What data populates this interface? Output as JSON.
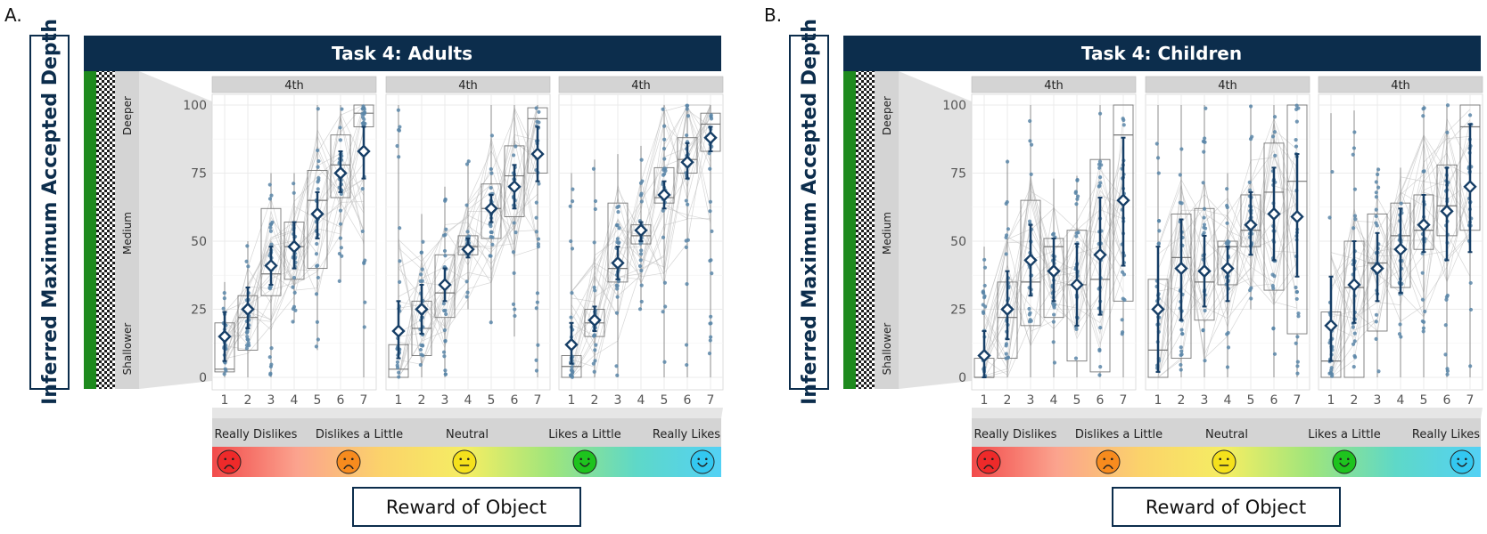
{
  "colors": {
    "header_bg": "#0c2d4c",
    "header_text": "#ffffff",
    "point": "#5b86a8",
    "mean": "#163e66",
    "strip": "#d4d4d4",
    "box": "#777777",
    "track_green": "#1e8a1e",
    "line": "#bbbbbb",
    "grid": "#ebebeb",
    "face_colors": [
      "#ee2a2a",
      "#f78b1e",
      "#f5e11c",
      "#1ec31e",
      "#33c8f0"
    ],
    "gradient_stops": [
      "#f24b4b",
      "#fba38e",
      "#fbd36a",
      "#f5ee63",
      "#9ee57c",
      "#5ed8c8",
      "#53d1f5"
    ]
  },
  "y_axis_label": "Inferred Maximum Accepted Depth",
  "y_depth_labels": [
    "Deeper",
    "Medium",
    "Shallower"
  ],
  "x_axis_label": "Reward of Object",
  "reward_levels": [
    "Really Dislikes",
    "Dislikes a Little",
    "Neutral",
    "Likes a Little",
    "Really Likes"
  ],
  "chart_data": [
    {
      "type": "box",
      "panel_label": "A.",
      "title": "Task 4: Adults",
      "ylim": [
        0,
        100
      ],
      "y_ticks": [
        0,
        25,
        50,
        75,
        100
      ],
      "x_ticks": [
        1,
        2,
        3,
        4,
        5,
        6,
        7
      ],
      "facets": [
        {
          "label": "4th",
          "series": [
            {
              "x": 1,
              "q1": 2,
              "median": 3,
              "q3": 20,
              "mean": 15,
              "ci": [
                6,
                24
              ],
              "low": 0,
              "high": 35
            },
            {
              "x": 2,
              "q1": 10,
              "median": 22,
              "q3": 30,
              "mean": 25,
              "ci": [
                18,
                33
              ],
              "low": 0,
              "high": 50
            },
            {
              "x": 3,
              "q1": 30,
              "median": 38,
              "q3": 62,
              "mean": 41,
              "ci": [
                34,
                48
              ],
              "low": 0,
              "high": 75
            },
            {
              "x": 4,
              "q1": 36,
              "median": 48,
              "q3": 57,
              "mean": 48,
              "ci": [
                40,
                57
              ],
              "low": 20,
              "high": 75
            },
            {
              "x": 5,
              "q1": 40,
              "median": 65,
              "q3": 76,
              "mean": 60,
              "ci": [
                51,
                68
              ],
              "low": 10,
              "high": 100
            },
            {
              "x": 6,
              "q1": 66,
              "median": 78,
              "q3": 89,
              "mean": 75,
              "ci": [
                68,
                83
              ],
              "low": 35,
              "high": 100
            },
            {
              "x": 7,
              "q1": 92,
              "median": 97,
              "q3": 100,
              "mean": 83,
              "ci": [
                73,
                92
              ],
              "low": 0,
              "high": 100
            }
          ]
        },
        {
          "label": "4th",
          "series": [
            {
              "x": 1,
              "q1": 0,
              "median": 3,
              "q3": 12,
              "mean": 17,
              "ci": [
                7,
                28
              ],
              "low": 0,
              "high": 100
            },
            {
              "x": 2,
              "q1": 8,
              "median": 18,
              "q3": 28,
              "mean": 25,
              "ci": [
                16,
                34
              ],
              "low": 0,
              "high": 60
            },
            {
              "x": 3,
              "q1": 22,
              "median": 31,
              "q3": 45,
              "mean": 34,
              "ci": [
                28,
                40
              ],
              "low": 0,
              "high": 70
            },
            {
              "x": 4,
              "q1": 45,
              "median": 48,
              "q3": 52,
              "mean": 47,
              "ci": [
                44,
                51
              ],
              "low": 25,
              "high": 80
            },
            {
              "x": 5,
              "q1": 51,
              "median": 62,
              "q3": 71,
              "mean": 62,
              "ci": [
                57,
                67
              ],
              "low": 20,
              "high": 100
            },
            {
              "x": 6,
              "q1": 59,
              "median": 74,
              "q3": 85,
              "mean": 70,
              "ci": [
                62,
                78
              ],
              "low": 15,
              "high": 100
            },
            {
              "x": 7,
              "q1": 75,
              "median": 95,
              "q3": 99,
              "mean": 82,
              "ci": [
                72,
                92
              ],
              "low": 0,
              "high": 100
            }
          ]
        },
        {
          "label": "4th",
          "series": [
            {
              "x": 1,
              "q1": 0,
              "median": 4,
              "q3": 8,
              "mean": 12,
              "ci": [
                5,
                20
              ],
              "low": 0,
              "high": 75
            },
            {
              "x": 2,
              "q1": 15,
              "median": 20,
              "q3": 25,
              "mean": 21,
              "ci": [
                17,
                26
              ],
              "low": 0,
              "high": 80
            },
            {
              "x": 3,
              "q1": 35,
              "median": 40,
              "q3": 64,
              "mean": 42,
              "ci": [
                36,
                48
              ],
              "low": 0,
              "high": 82
            },
            {
              "x": 4,
              "q1": 49,
              "median": 52,
              "q3": 56,
              "mean": 54,
              "ci": [
                50,
                57
              ],
              "low": 25,
              "high": 85
            },
            {
              "x": 5,
              "q1": 64,
              "median": 66,
              "q3": 77,
              "mean": 67,
              "ci": [
                62,
                72
              ],
              "low": 0,
              "high": 100
            },
            {
              "x": 6,
              "q1": 75,
              "median": 80,
              "q3": 88,
              "mean": 79,
              "ci": [
                73,
                86
              ],
              "low": 0,
              "high": 100
            },
            {
              "x": 7,
              "q1": 83,
              "median": 93,
              "q3": 97,
              "mean": 88,
              "ci": [
                83,
                92
              ],
              "low": 0,
              "high": 100
            }
          ]
        }
      ]
    },
    {
      "type": "box",
      "panel_label": "B.",
      "title": "Task 4: Children",
      "ylim": [
        0,
        100
      ],
      "y_ticks": [
        0,
        25,
        50,
        75,
        100
      ],
      "x_ticks": [
        1,
        2,
        3,
        4,
        5,
        6,
        7
      ],
      "facets": [
        {
          "label": "4th",
          "series": [
            {
              "x": 1,
              "q1": 0,
              "median": 0,
              "q3": 7,
              "mean": 8,
              "ci": [
                0,
                17
              ],
              "low": 0,
              "high": 48
            },
            {
              "x": 2,
              "q1": 7,
              "median": 22,
              "q3": 35,
              "mean": 25,
              "ci": [
                14,
                39
              ],
              "low": 0,
              "high": 80
            },
            {
              "x": 3,
              "q1": 19,
              "median": 35,
              "q3": 65,
              "mean": 43,
              "ci": [
                30,
                56
              ],
              "low": 0,
              "high": 100
            },
            {
              "x": 4,
              "q1": 22,
              "median": 48,
              "q3": 51,
              "mean": 39,
              "ci": [
                28,
                51
              ],
              "low": 0,
              "high": 73
            },
            {
              "x": 5,
              "q1": 6,
              "median": 34,
              "q3": 54,
              "mean": 34,
              "ci": [
                19,
                49
              ],
              "low": 0,
              "high": 74
            },
            {
              "x": 6,
              "q1": 2,
              "median": 36,
              "q3": 80,
              "mean": 45,
              "ci": [
                23,
                66
              ],
              "low": 0,
              "high": 100
            },
            {
              "x": 7,
              "q1": 28,
              "median": 89,
              "q3": 100,
              "mean": 65,
              "ci": [
                41,
                88
              ],
              "low": 0,
              "high": 100
            }
          ]
        },
        {
          "label": "4th",
          "series": [
            {
              "x": 1,
              "q1": 0,
              "median": 10,
              "q3": 36,
              "mean": 25,
              "ci": [
                2,
                48
              ],
              "low": 0,
              "high": 100
            },
            {
              "x": 2,
              "q1": 7,
              "median": 44,
              "q3": 60,
              "mean": 40,
              "ci": [
                21,
                58
              ],
              "low": 0,
              "high": 100
            },
            {
              "x": 3,
              "q1": 21,
              "median": 35,
              "q3": 62,
              "mean": 39,
              "ci": [
                26,
                52
              ],
              "low": 0,
              "high": 100
            },
            {
              "x": 4,
              "q1": 34,
              "median": 48,
              "q3": 50,
              "mean": 40,
              "ci": [
                28,
                48
              ],
              "low": 0,
              "high": 75
            },
            {
              "x": 5,
              "q1": 48,
              "median": 54,
              "q3": 67,
              "mean": 56,
              "ci": [
                45,
                68
              ],
              "low": 25,
              "high": 100
            },
            {
              "x": 6,
              "q1": 32,
              "median": 68,
              "q3": 86,
              "mean": 60,
              "ci": [
                43,
                77
              ],
              "low": 0,
              "high": 100
            },
            {
              "x": 7,
              "q1": 16,
              "median": 72,
              "q3": 100,
              "mean": 59,
              "ci": [
                37,
                82
              ],
              "low": 0,
              "high": 100
            }
          ]
        },
        {
          "label": "4th",
          "series": [
            {
              "x": 1,
              "q1": 0,
              "median": 6,
              "q3": 24,
              "mean": 19,
              "ci": [
                6,
                37
              ],
              "low": 0,
              "high": 97
            },
            {
              "x": 2,
              "q1": 0,
              "median": 33,
              "q3": 50,
              "mean": 34,
              "ci": [
                20,
                50
              ],
              "low": 0,
              "high": 98
            },
            {
              "x": 3,
              "q1": 17,
              "median": 42,
              "q3": 60,
              "mean": 40,
              "ci": [
                28,
                53
              ],
              "low": 0,
              "high": 77
            },
            {
              "x": 4,
              "q1": 33,
              "median": 52,
              "q3": 64,
              "mean": 47,
              "ci": [
                31,
                62
              ],
              "low": 0,
              "high": 77
            },
            {
              "x": 5,
              "q1": 47,
              "median": 54,
              "q3": 67,
              "mean": 56,
              "ci": [
                46,
                67
              ],
              "low": 0,
              "high": 100
            },
            {
              "x": 6,
              "q1": 52,
              "median": 63,
              "q3": 78,
              "mean": 61,
              "ci": [
                43,
                77
              ],
              "low": 0,
              "high": 100
            },
            {
              "x": 7,
              "q1": 54,
              "median": 92,
              "q3": 100,
              "mean": 70,
              "ci": [
                46,
                93
              ],
              "low": 0,
              "high": 100
            }
          ]
        }
      ]
    }
  ]
}
